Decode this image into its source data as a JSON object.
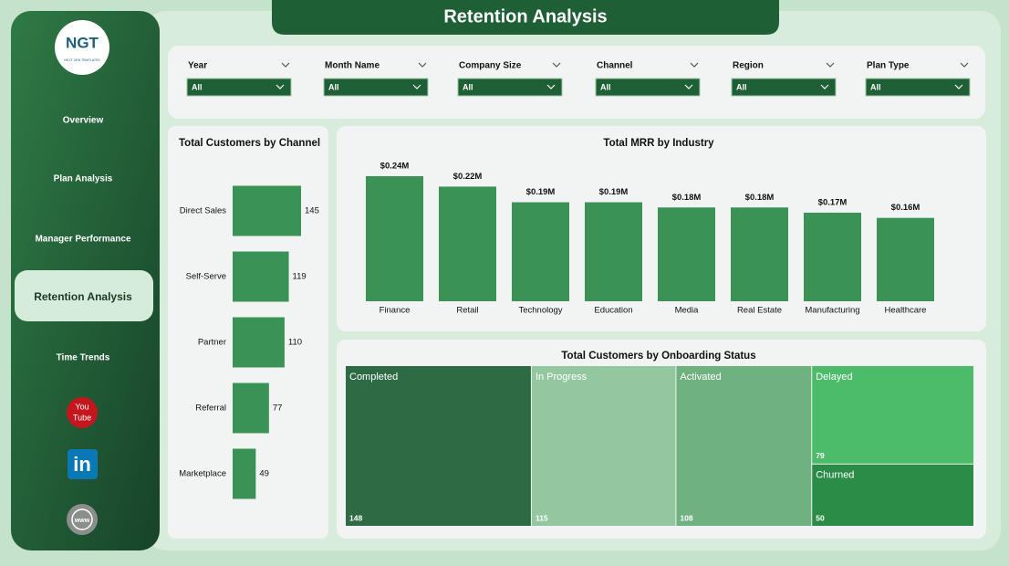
{
  "header": {
    "title": "Retention Analysis"
  },
  "sidebar": {
    "logo": "NGT",
    "logo_sub": "NEXT GEN TEMPLATES",
    "nav": [
      {
        "label": "Overview",
        "active": false
      },
      {
        "label": "Plan Analysis",
        "active": false
      },
      {
        "label": "Manager Performance",
        "active": false
      },
      {
        "label": "Retention Analysis",
        "active": true
      },
      {
        "label": "Time Trends",
        "active": false
      }
    ],
    "social": {
      "youtube": [
        "You",
        "Tube"
      ],
      "linkedin": "in",
      "web": "www"
    }
  },
  "filters": [
    {
      "label": "Year",
      "value": "All"
    },
    {
      "label": "Month Name",
      "value": "All"
    },
    {
      "label": "Company Size",
      "value": "All"
    },
    {
      "label": "Channel",
      "value": "All"
    },
    {
      "label": "Region",
      "value": "All"
    },
    {
      "label": "Plan Type",
      "value": "All"
    }
  ],
  "chart_data": [
    {
      "type": "bar",
      "orientation": "horizontal",
      "title": "Total Customers by Channel",
      "categories": [
        "Direct Sales",
        "Self-Serve",
        "Partner",
        "Referral",
        "Marketplace"
      ],
      "values": [
        145,
        119,
        110,
        77,
        49
      ],
      "color": "#3a9256"
    },
    {
      "type": "bar",
      "orientation": "vertical",
      "title": "Total MRR by Industry",
      "categories": [
        "Finance",
        "Retail",
        "Technology",
        "Education",
        "Media",
        "Real Estate",
        "Manufacturing",
        "Healthcare"
      ],
      "values": [
        0.24,
        0.22,
        0.19,
        0.19,
        0.18,
        0.18,
        0.17,
        0.16
      ],
      "value_labels": [
        "$0.24M",
        "$0.22M",
        "$0.19M",
        "$0.19M",
        "$0.18M",
        "$0.18M",
        "$0.17M",
        "$0.16M"
      ],
      "color": "#3a9256"
    },
    {
      "type": "treemap",
      "title": "Total Customers by Onboarding Status",
      "categories": [
        "Completed",
        "In Progress",
        "Activated",
        "Delayed",
        "Churned"
      ],
      "values": [
        148,
        115,
        108,
        79,
        50
      ],
      "colors": [
        "#2e6b45",
        "#93c7a0",
        "#6fb27f",
        "#4cbc6b",
        "#2a8c47"
      ]
    }
  ]
}
